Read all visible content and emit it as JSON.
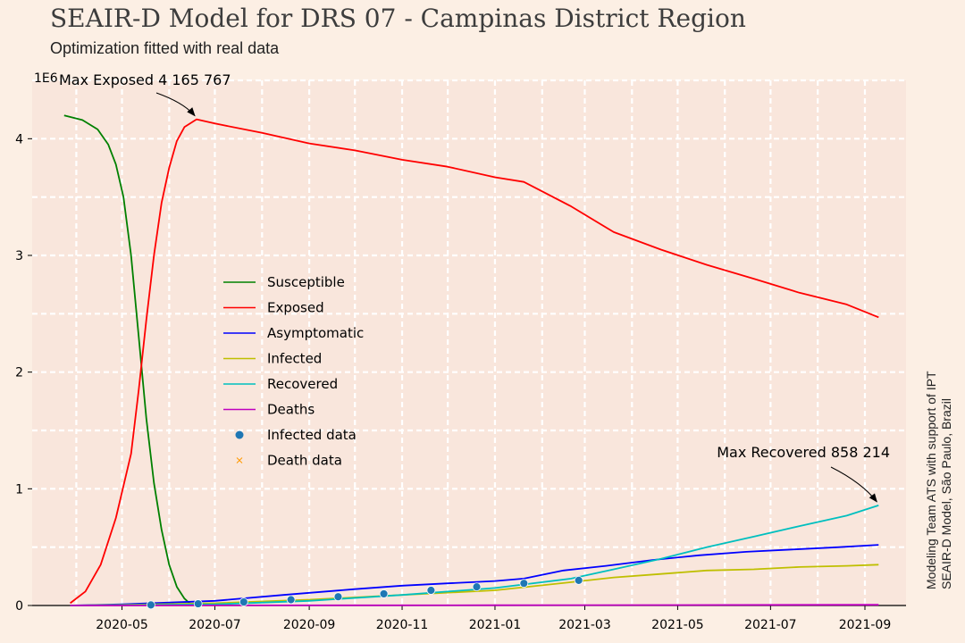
{
  "header": {
    "title": "SEAIR-D Model for DRS 07 - Campinas District Region",
    "subtitle": "Optimization fitted with real data"
  },
  "side_note": {
    "line1": "Modeling Team ATS with support of IPT",
    "line2": "SEAIR-D Model, São Paulo, Brazil"
  },
  "colors": {
    "background": "#fcefe4",
    "plot_area": "#f9e6dc",
    "grid": "#ffffff",
    "Susceptible": "#008000",
    "Exposed": "#ff0000",
    "Asymptomatic": "#0000ff",
    "Infected": "#bfbf00",
    "Recovered": "#00bfbf",
    "Deaths": "#bf00bf",
    "Infected data": "#1f77b4",
    "Death data": "#ff9900"
  },
  "chart_data": {
    "type": "line",
    "title": "SEAIR-D Model for DRS 07 - Campinas District Region",
    "subtitle": "Optimization fitted with real data",
    "xlabel": "",
    "ylabel": "",
    "y_scale_label": "1E6",
    "xlim": [
      "2020-03-03",
      "2021-09-28"
    ],
    "ylim": [
      0,
      4.5
    ],
    "grid": true,
    "legend_position": "center-left",
    "x_ticks": [
      "2020-05",
      "2020-07",
      "2020-09",
      "2020-11",
      "2021-01",
      "2021-03",
      "2021-05",
      "2021-07",
      "2021-09"
    ],
    "y_ticks": [
      0,
      1,
      2,
      3,
      4
    ],
    "series": [
      {
        "name": "Susceptible",
        "style": "line",
        "x": [
          "2020-03-24",
          "2020-04-05",
          "2020-04-15",
          "2020-04-22",
          "2020-04-27",
          "2020-05-02",
          "2020-05-07",
          "2020-05-12",
          "2020-05-17",
          "2020-05-22",
          "2020-05-27",
          "2020-06-01",
          "2020-06-06",
          "2020-06-11",
          "2020-06-16"
        ],
        "y": [
          4.2,
          4.16,
          4.08,
          3.95,
          3.78,
          3.5,
          3.0,
          2.3,
          1.6,
          1.05,
          0.65,
          0.35,
          0.16,
          0.06,
          0.0
        ]
      },
      {
        "name": "Exposed",
        "style": "line",
        "x": [
          "2020-03-28",
          "2020-04-07",
          "2020-04-17",
          "2020-04-27",
          "2020-05-07",
          "2020-05-12",
          "2020-05-17",
          "2020-05-22",
          "2020-05-27",
          "2020-06-01",
          "2020-06-06",
          "2020-06-11",
          "2020-06-19",
          "2020-07-01",
          "2020-08-01",
          "2020-09-01",
          "2020-10-01",
          "2020-11-01",
          "2020-12-01",
          "2021-01-01",
          "2021-01-20",
          "2021-02-20",
          "2021-03-20",
          "2021-04-20",
          "2021-05-20",
          "2021-06-20",
          "2021-07-20",
          "2021-08-20",
          "2021-09-10"
        ],
        "y": [
          0.02,
          0.12,
          0.35,
          0.75,
          1.3,
          1.85,
          2.45,
          3.0,
          3.45,
          3.75,
          3.98,
          4.1,
          4.166,
          4.13,
          4.05,
          3.96,
          3.9,
          3.82,
          3.76,
          3.67,
          3.63,
          3.42,
          3.2,
          3.05,
          2.92,
          2.8,
          2.68,
          2.58,
          2.47
        ]
      },
      {
        "name": "Asymptomatic",
        "style": "line",
        "x": [
          "2020-03-28",
          "2020-05-01",
          "2020-07-01",
          "2020-08-15",
          "2020-10-01",
          "2020-11-01",
          "2020-12-01",
          "2021-01-01",
          "2021-01-20",
          "2021-02-15",
          "2021-03-15",
          "2021-04-15",
          "2021-05-15",
          "2021-06-15",
          "2021-07-15",
          "2021-08-15",
          "2021-09-10"
        ],
        "y": [
          0.0,
          0.01,
          0.04,
          0.09,
          0.14,
          0.17,
          0.19,
          0.21,
          0.23,
          0.3,
          0.34,
          0.39,
          0.43,
          0.46,
          0.48,
          0.5,
          0.52
        ]
      },
      {
        "name": "Infected",
        "style": "line",
        "x": [
          "2020-03-28",
          "2020-05-01",
          "2020-07-01",
          "2020-09-01",
          "2020-11-01",
          "2021-01-01",
          "2021-02-20",
          "2021-03-20",
          "2021-04-20",
          "2021-05-20",
          "2021-06-20",
          "2021-07-20",
          "2021-08-20",
          "2021-09-10"
        ],
        "y": [
          0.0,
          0.005,
          0.02,
          0.05,
          0.09,
          0.13,
          0.2,
          0.24,
          0.27,
          0.3,
          0.31,
          0.33,
          0.34,
          0.35
        ]
      },
      {
        "name": "Recovered",
        "style": "line",
        "x": [
          "2020-03-28",
          "2020-05-01",
          "2020-07-01",
          "2020-09-01",
          "2020-11-01",
          "2021-01-01",
          "2021-02-20",
          "2021-03-20",
          "2021-04-20",
          "2021-05-20",
          "2021-06-20",
          "2021-07-20",
          "2021-08-20",
          "2021-09-10"
        ],
        "y": [
          0.0,
          0.003,
          0.01,
          0.04,
          0.09,
          0.15,
          0.23,
          0.31,
          0.4,
          0.5,
          0.59,
          0.68,
          0.77,
          0.858
        ]
      },
      {
        "name": "Deaths",
        "style": "line",
        "x": [
          "2020-03-28",
          "2020-07-01",
          "2021-01-01",
          "2021-05-01",
          "2021-09-10"
        ],
        "y": [
          0.0,
          0.0005,
          0.002,
          0.004,
          0.006
        ]
      },
      {
        "name": "Infected data",
        "style": "points",
        "x": [
          "2020-05-20",
          "2020-06-20",
          "2020-07-20",
          "2020-08-20",
          "2020-09-20",
          "2020-10-20",
          "2020-11-20",
          "2020-12-20",
          "2021-01-20",
          "2021-02-25"
        ],
        "y": [
          0.005,
          0.015,
          0.03,
          0.05,
          0.075,
          0.1,
          0.13,
          0.16,
          0.19,
          0.215
        ]
      },
      {
        "name": "Death data",
        "style": "x-markers",
        "x": [],
        "y": []
      }
    ],
    "annotations": [
      {
        "text": "Max Exposed 4 165 767",
        "x": "2020-06-19",
        "y": 4.166
      },
      {
        "text": "Max Recovered 858 214",
        "x": "2021-09-10",
        "y": 0.858
      }
    ]
  }
}
